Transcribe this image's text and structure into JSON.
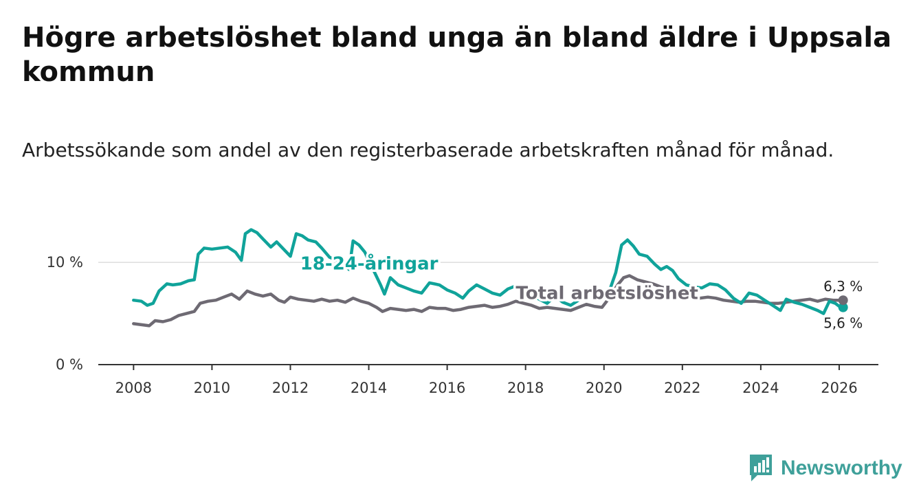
{
  "title": "Högre arbetslöshet bland unga än bland äldre i Uppsala kommun",
  "subtitle": "Arbetssökande som andel av den registerbaserade arbetskraften månad för månad.",
  "brand": {
    "name": "Newsworthy",
    "color": "#3fa09a"
  },
  "chart_data": {
    "type": "line",
    "xlim": [
      2007.1,
      2027.0
    ],
    "ylim": [
      0,
      13.5
    ],
    "x_ticks": [
      2008,
      2010,
      2012,
      2014,
      2016,
      2018,
      2020,
      2022,
      2024,
      2026
    ],
    "x_tick_labels": [
      "2008",
      "2010",
      "2012",
      "2014",
      "2016",
      "2018",
      "2020",
      "2022",
      "2024",
      "2026"
    ],
    "y_ticks": [
      0,
      10
    ],
    "y_tick_labels": [
      "0 %",
      "10 %"
    ],
    "grid": "horizontal",
    "series": [
      {
        "name": "18-24-åringar",
        "label": "18-24-åringar",
        "color": "#10a39a",
        "end_label": "5,6 %",
        "points": [
          [
            2008.0,
            6.3
          ],
          [
            2008.2,
            6.2
          ],
          [
            2008.35,
            5.8
          ],
          [
            2008.5,
            6.0
          ],
          [
            2008.65,
            7.2
          ],
          [
            2008.85,
            7.9
          ],
          [
            2009.0,
            7.8
          ],
          [
            2009.2,
            7.9
          ],
          [
            2009.4,
            8.2
          ],
          [
            2009.55,
            8.3
          ],
          [
            2009.65,
            10.8
          ],
          [
            2009.8,
            11.4
          ],
          [
            2010.0,
            11.3
          ],
          [
            2010.2,
            11.4
          ],
          [
            2010.4,
            11.5
          ],
          [
            2010.6,
            11.0
          ],
          [
            2010.75,
            10.2
          ],
          [
            2010.85,
            12.8
          ],
          [
            2011.0,
            13.2
          ],
          [
            2011.15,
            12.9
          ],
          [
            2011.3,
            12.3
          ],
          [
            2011.5,
            11.5
          ],
          [
            2011.65,
            12.0
          ],
          [
            2011.85,
            11.2
          ],
          [
            2012.0,
            10.6
          ],
          [
            2012.15,
            12.8
          ],
          [
            2012.3,
            12.6
          ],
          [
            2012.45,
            12.2
          ],
          [
            2012.65,
            12.0
          ],
          [
            2012.8,
            11.4
          ],
          [
            2013.0,
            10.5
          ],
          [
            2013.2,
            10.2
          ],
          [
            2013.35,
            9.8
          ],
          [
            2013.5,
            9.3
          ],
          [
            2013.6,
            12.1
          ],
          [
            2013.75,
            11.7
          ],
          [
            2013.9,
            11.0
          ],
          [
            2014.0,
            10.2
          ],
          [
            2014.15,
            9.0
          ],
          [
            2014.3,
            7.8
          ],
          [
            2014.4,
            6.9
          ],
          [
            2014.55,
            8.5
          ],
          [
            2014.75,
            7.8
          ],
          [
            2014.95,
            7.5
          ],
          [
            2015.15,
            7.2
          ],
          [
            2015.35,
            7.0
          ],
          [
            2015.55,
            8.0
          ],
          [
            2015.8,
            7.8
          ],
          [
            2016.0,
            7.3
          ],
          [
            2016.2,
            7.0
          ],
          [
            2016.4,
            6.5
          ],
          [
            2016.55,
            7.2
          ],
          [
            2016.75,
            7.8
          ],
          [
            2016.95,
            7.4
          ],
          [
            2017.15,
            7.0
          ],
          [
            2017.35,
            6.8
          ],
          [
            2017.55,
            7.4
          ],
          [
            2017.75,
            7.7
          ],
          [
            2017.95,
            7.1
          ],
          [
            2018.15,
            6.7
          ],
          [
            2018.35,
            6.4
          ],
          [
            2018.55,
            6.0
          ],
          [
            2018.75,
            6.7
          ],
          [
            2018.95,
            6.1
          ],
          [
            2019.15,
            5.8
          ],
          [
            2019.35,
            6.3
          ],
          [
            2019.55,
            7.2
          ],
          [
            2019.75,
            7.0
          ],
          [
            2019.95,
            6.5
          ],
          [
            2020.1,
            6.8
          ],
          [
            2020.3,
            9.0
          ],
          [
            2020.45,
            11.7
          ],
          [
            2020.6,
            12.2
          ],
          [
            2020.75,
            11.6
          ],
          [
            2020.9,
            10.8
          ],
          [
            2021.1,
            10.6
          ],
          [
            2021.3,
            9.8
          ],
          [
            2021.45,
            9.3
          ],
          [
            2021.6,
            9.6
          ],
          [
            2021.75,
            9.2
          ],
          [
            2021.9,
            8.4
          ],
          [
            2022.1,
            7.8
          ],
          [
            2022.3,
            7.6
          ],
          [
            2022.5,
            7.5
          ],
          [
            2022.7,
            7.9
          ],
          [
            2022.9,
            7.8
          ],
          [
            2023.1,
            7.3
          ],
          [
            2023.3,
            6.5
          ],
          [
            2023.5,
            6.0
          ],
          [
            2023.7,
            7.0
          ],
          [
            2023.9,
            6.8
          ],
          [
            2024.1,
            6.3
          ],
          [
            2024.3,
            5.8
          ],
          [
            2024.5,
            5.3
          ],
          [
            2024.65,
            6.4
          ],
          [
            2024.85,
            6.1
          ],
          [
            2025.05,
            5.9
          ],
          [
            2025.25,
            5.6
          ],
          [
            2025.45,
            5.3
          ],
          [
            2025.6,
            5.0
          ],
          [
            2025.75,
            6.2
          ],
          [
            2025.9,
            6.0
          ],
          [
            2026.0,
            5.7
          ],
          [
            2026.1,
            5.6
          ]
        ]
      },
      {
        "name": "Total arbetslöshet",
        "label": "Total arbetslöshet",
        "color": "#6e6a73",
        "end_label": "6,3 %",
        "points": [
          [
            2008.0,
            4.0
          ],
          [
            2008.2,
            3.9
          ],
          [
            2008.4,
            3.8
          ],
          [
            2008.55,
            4.3
          ],
          [
            2008.75,
            4.2
          ],
          [
            2008.95,
            4.4
          ],
          [
            2009.15,
            4.8
          ],
          [
            2009.35,
            5.0
          ],
          [
            2009.55,
            5.2
          ],
          [
            2009.7,
            6.0
          ],
          [
            2009.9,
            6.2
          ],
          [
            2010.1,
            6.3
          ],
          [
            2010.3,
            6.6
          ],
          [
            2010.5,
            6.9
          ],
          [
            2010.7,
            6.4
          ],
          [
            2010.9,
            7.2
          ],
          [
            2011.1,
            6.9
          ],
          [
            2011.3,
            6.7
          ],
          [
            2011.5,
            6.9
          ],
          [
            2011.7,
            6.3
          ],
          [
            2011.85,
            6.1
          ],
          [
            2012.0,
            6.6
          ],
          [
            2012.2,
            6.4
          ],
          [
            2012.4,
            6.3
          ],
          [
            2012.6,
            6.2
          ],
          [
            2012.8,
            6.4
          ],
          [
            2013.0,
            6.2
          ],
          [
            2013.2,
            6.3
          ],
          [
            2013.4,
            6.1
          ],
          [
            2013.6,
            6.5
          ],
          [
            2013.8,
            6.2
          ],
          [
            2014.0,
            6.0
          ],
          [
            2014.2,
            5.6
          ],
          [
            2014.35,
            5.2
          ],
          [
            2014.55,
            5.5
          ],
          [
            2014.75,
            5.4
          ],
          [
            2014.95,
            5.3
          ],
          [
            2015.15,
            5.4
          ],
          [
            2015.35,
            5.2
          ],
          [
            2015.55,
            5.6
          ],
          [
            2015.75,
            5.5
          ],
          [
            2015.95,
            5.5
          ],
          [
            2016.15,
            5.3
          ],
          [
            2016.35,
            5.4
          ],
          [
            2016.55,
            5.6
          ],
          [
            2016.75,
            5.7
          ],
          [
            2016.95,
            5.8
          ],
          [
            2017.15,
            5.6
          ],
          [
            2017.35,
            5.7
          ],
          [
            2017.55,
            5.9
          ],
          [
            2017.75,
            6.2
          ],
          [
            2017.95,
            6.0
          ],
          [
            2018.15,
            5.8
          ],
          [
            2018.35,
            5.5
          ],
          [
            2018.55,
            5.6
          ],
          [
            2018.75,
            5.5
          ],
          [
            2018.95,
            5.4
          ],
          [
            2019.15,
            5.3
          ],
          [
            2019.35,
            5.6
          ],
          [
            2019.55,
            5.9
          ],
          [
            2019.75,
            5.7
          ],
          [
            2019.95,
            5.6
          ],
          [
            2020.15,
            6.6
          ],
          [
            2020.35,
            7.8
          ],
          [
            2020.5,
            8.5
          ],
          [
            2020.65,
            8.7
          ],
          [
            2020.85,
            8.3
          ],
          [
            2021.05,
            8.1
          ],
          [
            2021.25,
            7.9
          ],
          [
            2021.45,
            7.6
          ],
          [
            2021.65,
            7.4
          ],
          [
            2021.85,
            7.1
          ],
          [
            2022.05,
            6.8
          ],
          [
            2022.25,
            6.6
          ],
          [
            2022.45,
            6.5
          ],
          [
            2022.65,
            6.6
          ],
          [
            2022.85,
            6.5
          ],
          [
            2023.05,
            6.3
          ],
          [
            2023.25,
            6.2
          ],
          [
            2023.45,
            6.1
          ],
          [
            2023.65,
            6.2
          ],
          [
            2023.85,
            6.2
          ],
          [
            2024.05,
            6.1
          ],
          [
            2024.25,
            6.0
          ],
          [
            2024.45,
            6.0
          ],
          [
            2024.65,
            6.1
          ],
          [
            2024.85,
            6.2
          ],
          [
            2025.05,
            6.3
          ],
          [
            2025.25,
            6.4
          ],
          [
            2025.45,
            6.2
          ],
          [
            2025.65,
            6.4
          ],
          [
            2025.85,
            6.3
          ],
          [
            2026.0,
            6.3
          ],
          [
            2026.1,
            6.3
          ]
        ]
      }
    ]
  }
}
